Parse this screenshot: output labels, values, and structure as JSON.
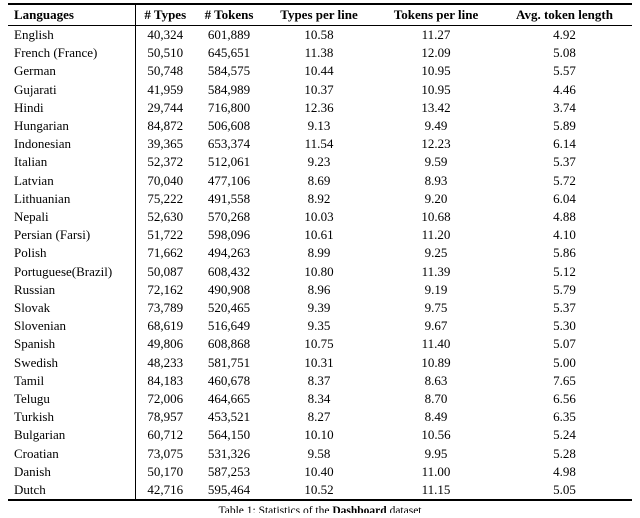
{
  "table": {
    "columns": [
      "Languages",
      "# Types",
      "# Tokens",
      "Types per line",
      "Tokens per line",
      "Avg. token length"
    ],
    "rows": [
      [
        "English",
        "40,324",
        "601,889",
        "10.58",
        "11.27",
        "4.92"
      ],
      [
        "French (France)",
        "50,510",
        "645,651",
        "11.38",
        "12.09",
        "5.08"
      ],
      [
        "German",
        "50,748",
        "584,575",
        "10.44",
        "10.95",
        "5.57"
      ],
      [
        "Gujarati",
        "41,959",
        "584,989",
        "10.37",
        "10.95",
        "4.46"
      ],
      [
        "Hindi",
        "29,744",
        "716,800",
        "12.36",
        "13.42",
        "3.74"
      ],
      [
        "Hungarian",
        "84,872",
        "506,608",
        "9.13",
        "9.49",
        "5.89"
      ],
      [
        "Indonesian",
        "39,365",
        "653,374",
        "11.54",
        "12.23",
        "6.14"
      ],
      [
        "Italian",
        "52,372",
        "512,061",
        "9.23",
        "9.59",
        "5.37"
      ],
      [
        "Latvian",
        "70,040",
        "477,106",
        "8.69",
        "8.93",
        "5.72"
      ],
      [
        "Lithuanian",
        "75,222",
        "491,558",
        "8.92",
        "9.20",
        "6.04"
      ],
      [
        "Nepali",
        "52,630",
        "570,268",
        "10.03",
        "10.68",
        "4.88"
      ],
      [
        "Persian (Farsi)",
        "51,722",
        "598,096",
        "10.61",
        "11.20",
        "4.10"
      ],
      [
        "Polish",
        "71,662",
        "494,263",
        "8.99",
        "9.25",
        "5.86"
      ],
      [
        "Portuguese(Brazil)",
        "50,087",
        "608,432",
        "10.80",
        "11.39",
        "5.12"
      ],
      [
        "Russian",
        "72,162",
        "490,908",
        "8.96",
        "9.19",
        "5.79"
      ],
      [
        "Slovak",
        "73,789",
        "520,465",
        "9.39",
        "9.75",
        "5.37"
      ],
      [
        "Slovenian",
        "68,619",
        "516,649",
        "9.35",
        "9.67",
        "5.30"
      ],
      [
        "Spanish",
        "49,806",
        "608,868",
        "10.75",
        "11.40",
        "5.07"
      ],
      [
        "Swedish",
        "48,233",
        "581,751",
        "10.31",
        "10.89",
        "5.00"
      ],
      [
        "Tamil",
        "84,183",
        "460,678",
        "8.37",
        "8.63",
        "7.65"
      ],
      [
        "Telugu",
        "72,006",
        "464,665",
        "8.34",
        "8.70",
        "6.56"
      ],
      [
        "Turkish",
        "78,957",
        "453,521",
        "8.27",
        "8.49",
        "6.35"
      ],
      [
        "Bulgarian",
        "60,712",
        "564,150",
        "10.10",
        "10.56",
        "5.24"
      ],
      [
        "Croatian",
        "73,075",
        "531,326",
        "9.58",
        "9.95",
        "5.28"
      ],
      [
        "Danish",
        "50,170",
        "587,253",
        "10.40",
        "11.00",
        "4.98"
      ],
      [
        "Dutch",
        "42,716",
        "595,464",
        "10.52",
        "11.15",
        "5.05"
      ]
    ]
  },
  "caption": {
    "prefix": "Table 1: Statistics of the ",
    "dataset_name": "Dashboard",
    "suffix": " dataset"
  }
}
